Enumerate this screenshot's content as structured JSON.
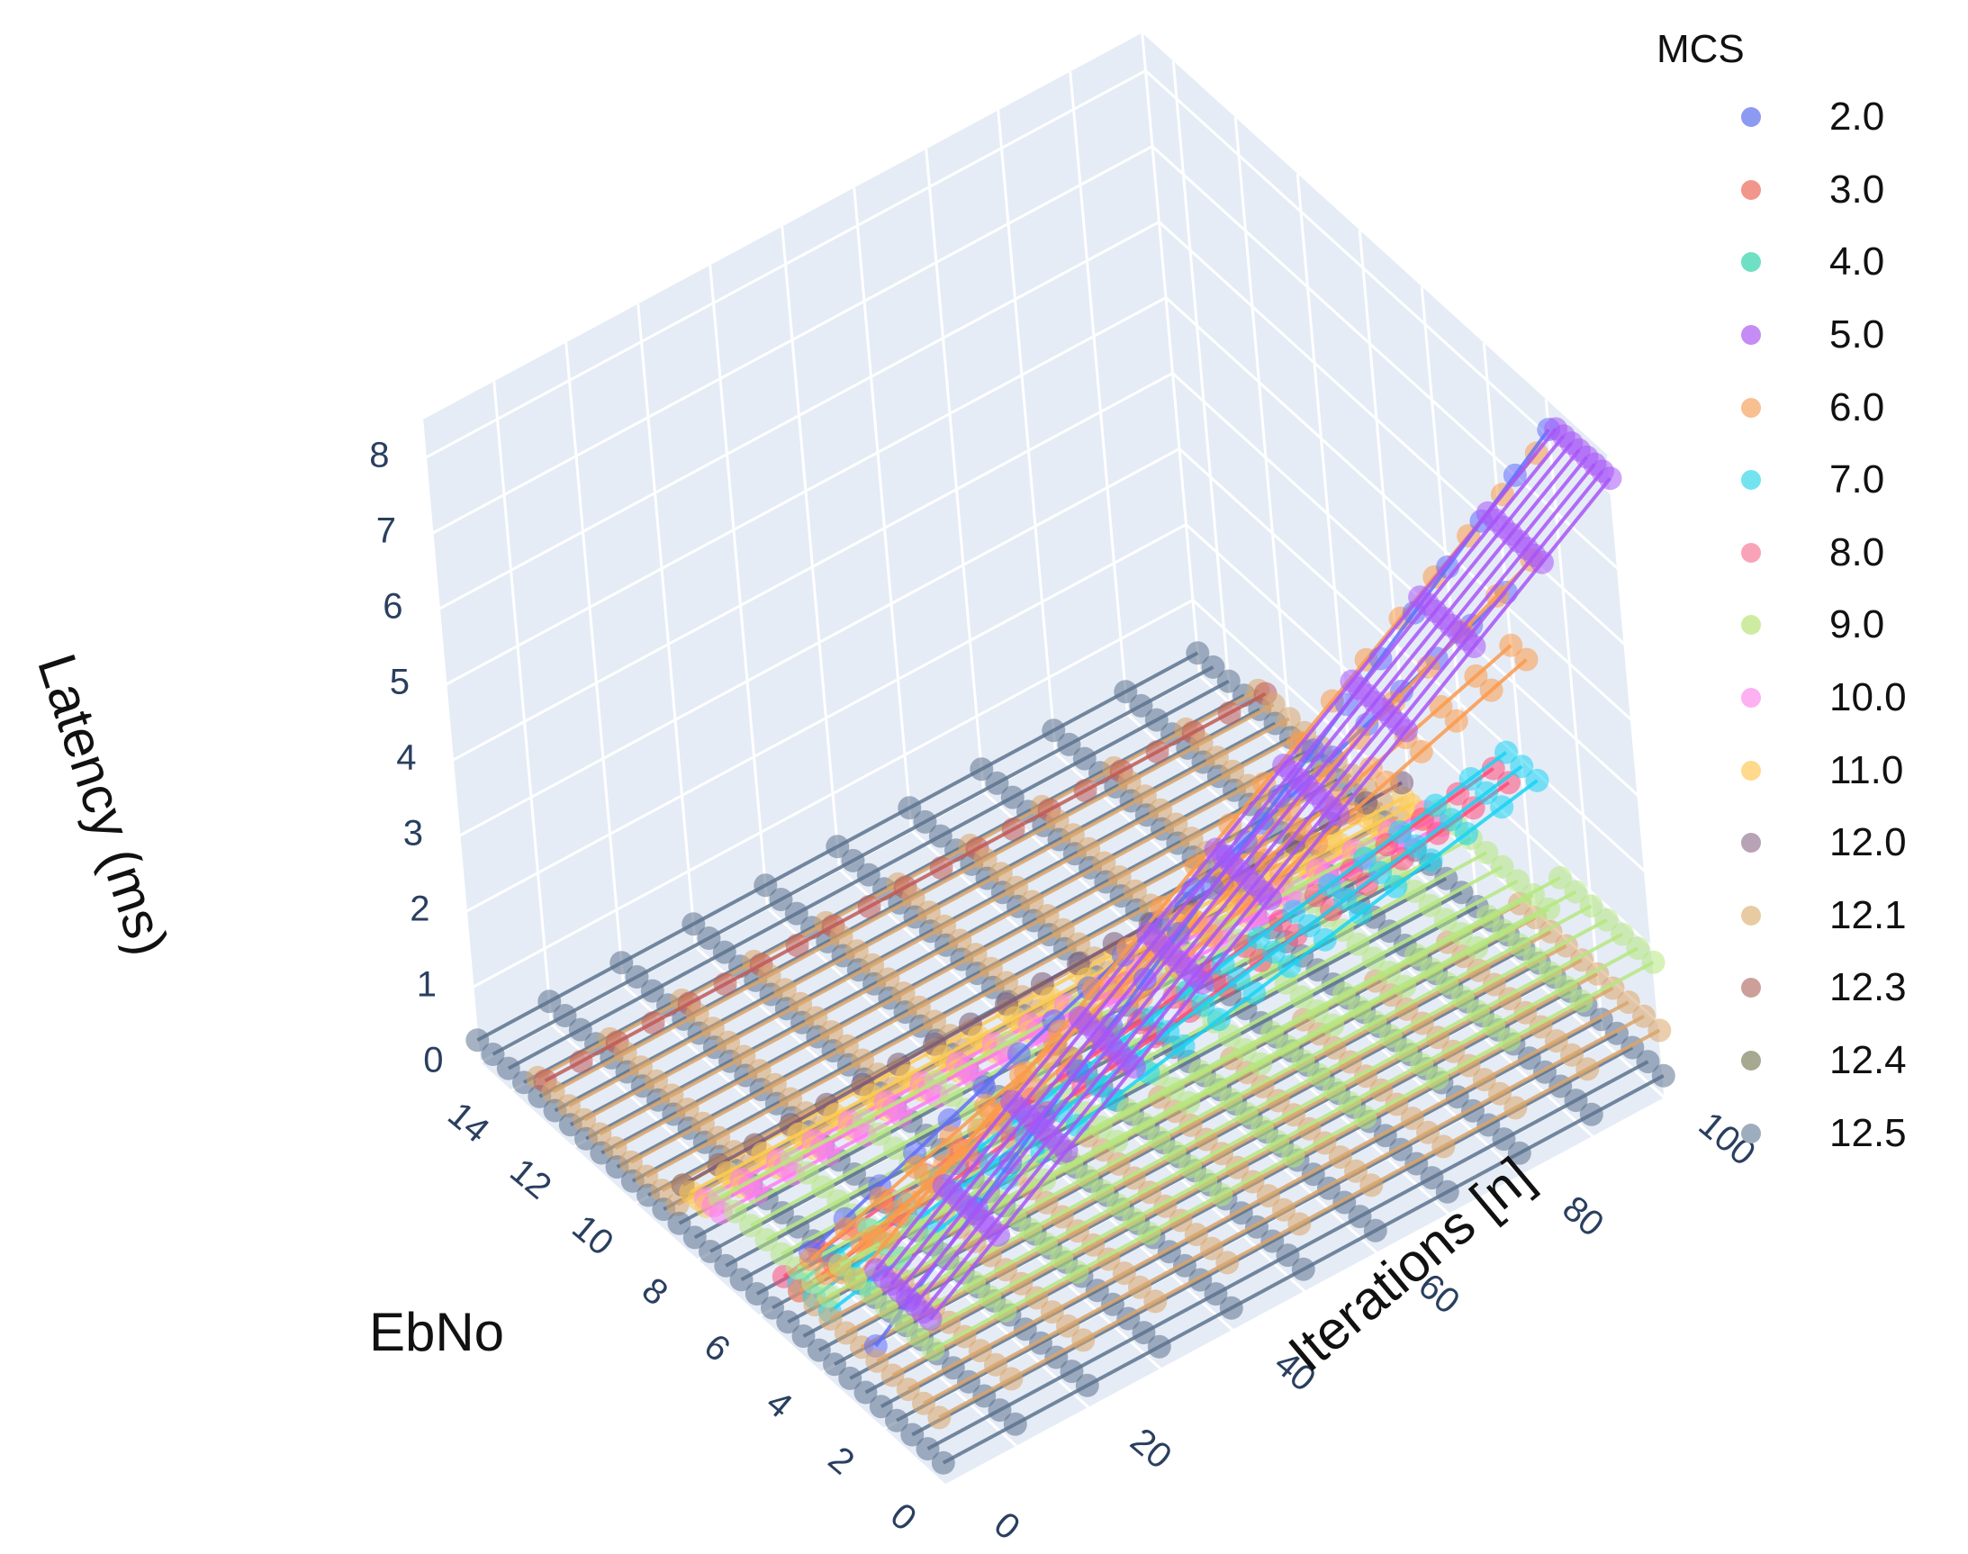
{
  "chart_data": {
    "type": "scatter3d-lines",
    "x_axis": {
      "title": "Iterations [n]",
      "range": [
        0,
        100
      ],
      "ticks": [
        "0",
        "20",
        "40",
        "60",
        "80",
        "100"
      ]
    },
    "y_axis": {
      "title": "EbNo",
      "range": [
        0,
        15
      ],
      "ticks": [
        "0",
        "2",
        "4",
        "6",
        "8",
        "10",
        "12",
        "14"
      ]
    },
    "z_axis": {
      "title": "Latency (ms)",
      "range": [
        0,
        8.5
      ],
      "ticks": [
        "0",
        "1",
        "2",
        "3",
        "4",
        "5",
        "6",
        "7",
        "8"
      ]
    },
    "legend": {
      "title": "MCS",
      "entries": [
        {
          "label": "2.0",
          "color": "#8c9af2"
        },
        {
          "label": "3.0",
          "color": "#f2958a"
        },
        {
          "label": "4.0",
          "color": "#6fe0c3"
        },
        {
          "label": "5.0",
          "color": "#c58cf5"
        },
        {
          "label": "6.0",
          "color": "#f8bf91"
        },
        {
          "label": "7.0",
          "color": "#74e3f0"
        },
        {
          "label": "8.0",
          "color": "#f9a3b9"
        },
        {
          "label": "9.0",
          "color": "#cdeca1"
        },
        {
          "label": "10.0",
          "color": "#fdb0f2"
        },
        {
          "label": "11.0",
          "color": "#ffd98c"
        },
        {
          "label": "12.0",
          "color": "#b8a2b5"
        },
        {
          "label": "12.1",
          "color": "#e9cba3"
        },
        {
          "label": "12.3",
          "color": "#cc9f9b"
        },
        {
          "label": "12.4",
          "color": "#a7a890"
        },
        {
          "label": "12.5",
          "color": "#9eadbd"
        }
      ]
    },
    "series": [
      {
        "mcs": "5.0",
        "color": "#a855f7",
        "ebno": [
          0,
          0.25,
          0.5,
          0.75,
          1.0,
          1.25,
          1.5,
          1.75
        ],
        "latency_at_0": 2.2,
        "latency_at_100": 8.2
      },
      {
        "mcs": "2.0",
        "color": "#636efa",
        "ebno": [
          2.0
        ],
        "latency_at_0": 1.1,
        "latency_at_100": 8.1
      },
      {
        "mcs": "2.0",
        "color": "#636efa",
        "ebno": [
          4.0
        ],
        "latency_at_0": 1.6,
        "latency_at_100": 5.2
      },
      {
        "mcs": "6.0",
        "color": "#fb9a4b",
        "ebno": [
          2.5
        ],
        "latency_at_0": 1.8,
        "latency_at_100": 7.6
      },
      {
        "mcs": "6.0",
        "color": "#fb9a4b",
        "ebno": [
          3.0
        ],
        "latency_at_0": 1.7,
        "latency_at_100": 6.0
      },
      {
        "mcs": "6.0",
        "color": "#fb9a4b",
        "ebno": [
          3.5,
          4.0
        ],
        "latency_at_0": 1.5,
        "latency_at_100": 4.5
      },
      {
        "mcs": "7.0",
        "color": "#19d3f3",
        "ebno": [
          3.5,
          4.0,
          4.5
        ],
        "latency_at_0": 1.0,
        "latency_at_100": 2.9
      },
      {
        "mcs": "8.0",
        "color": "#ff4d7a",
        "ebno": [
          4.5,
          5.0
        ],
        "latency_at_0": 0.9,
        "latency_at_100": 2.5
      },
      {
        "mcs": "9.0",
        "color": "#b6e880",
        "ebno": [
          0,
          0.5,
          1.0,
          1.5,
          2.0,
          2.5,
          3.0
        ],
        "latency_at_0": 1.8,
        "latency_at_100": 1.8
      },
      {
        "mcs": "9.0",
        "color": "#b6e880",
        "ebno": [
          3.5,
          4.0,
          4.5,
          5.0,
          5.5,
          6.0,
          6.5,
          7.0
        ],
        "latency_at_0": 1.2,
        "latency_at_100": 1.2
      },
      {
        "mcs": "10.0",
        "color": "#ff7df0",
        "ebno": [
          7.0,
          7.25,
          7.5
        ],
        "latency_at_0": 1.0,
        "latency_at_100": 1.0
      },
      {
        "mcs": "11.0",
        "color": "#fecb52",
        "ebno": [
          7.5,
          7.75,
          8.0,
          8.25
        ],
        "latency_at_0": 0.9,
        "latency_at_100": 0.9
      },
      {
        "mcs": "12.0",
        "color": "#7a5a78",
        "ebno": [
          8.25
        ],
        "latency_at_0": 0.9,
        "latency_at_100": 1.1
      },
      {
        "mcs": "12.1",
        "color": "#dba56a",
        "ebno": [
          0,
          0.5,
          1.0,
          1.5,
          2.0,
          2.5,
          3.0,
          3.5,
          4.0,
          4.5
        ],
        "latency_at_0": 0.9,
        "latency_at_100": 0.9
      },
      {
        "mcs": "12.1",
        "color": "#dba56a",
        "ebno": [
          8.5,
          9.0,
          9.5,
          10.0,
          10.5,
          11.0,
          11.5,
          12.0,
          12.5,
          13.0
        ],
        "latency_at_0": 0.55,
        "latency_at_100": 0.55
      },
      {
        "mcs": "12.3",
        "color": "#c05a55",
        "ebno": [
          12.75
        ],
        "latency_at_0": 0.6,
        "latency_at_100": 0.6
      },
      {
        "mcs": "12.5",
        "color": "#5c738e",
        "ebno": [
          0,
          0.5,
          1.0,
          1.5,
          2.0,
          2.5,
          3.0,
          3.5,
          4.0,
          4.5,
          5.0,
          5.5,
          6.0,
          6.5,
          7.0,
          7.5,
          8.0,
          8.5,
          9.0,
          9.5,
          10.0,
          10.5,
          11.0,
          11.5,
          12.0,
          12.5,
          13.0,
          13.5,
          14.0,
          14.5,
          15.0
        ],
        "latency_at_0": 0.3,
        "latency_at_100": 0.3
      }
    ]
  }
}
